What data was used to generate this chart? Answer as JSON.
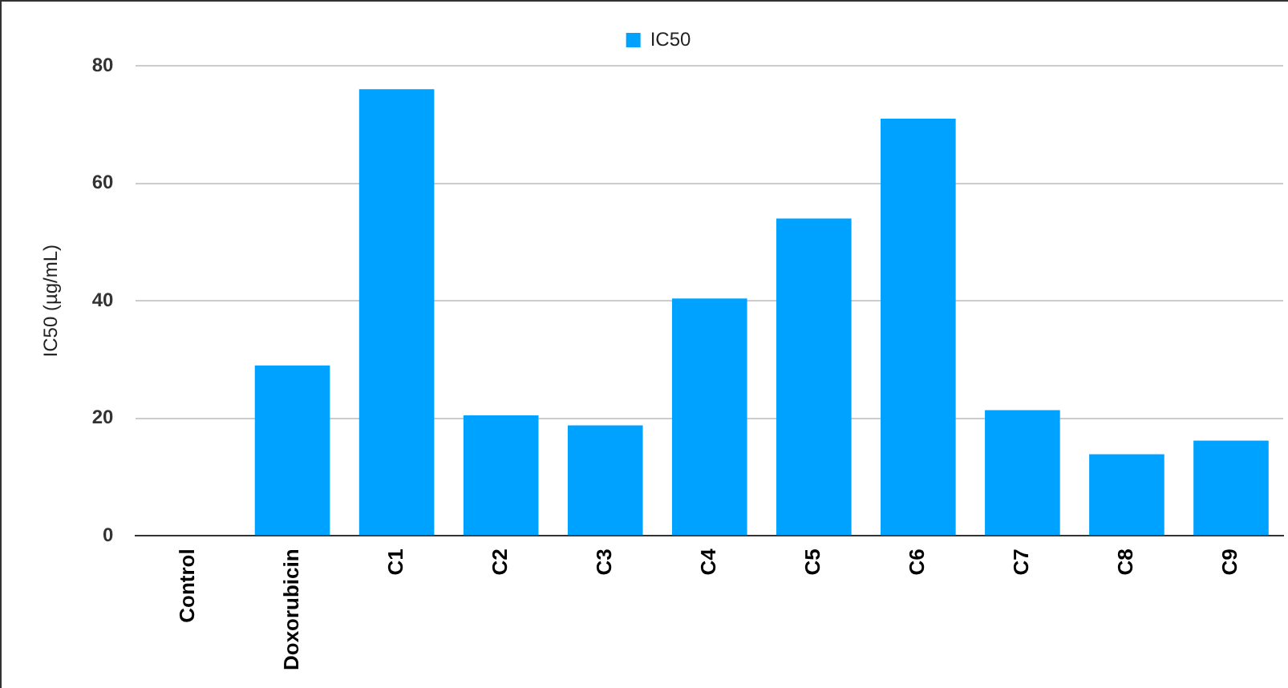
{
  "chart_data": {
    "type": "bar",
    "ylabel": "IC50 (µg/mL)",
    "categories": [
      "Control",
      "Doxorubicin",
      "C1",
      "C2",
      "C3",
      "C4",
      "C5",
      "C6",
      "C7",
      "C8",
      "C9"
    ],
    "series": [
      {
        "name": "IC50",
        "color": "#00a2ff",
        "values": [
          0,
          29,
          76,
          20.5,
          18.8,
          40.4,
          54,
          71,
          21.4,
          13.9,
          16.2
        ]
      }
    ],
    "ylim": [
      0,
      80
    ],
    "yticks": [
      0,
      20,
      40,
      60,
      80
    ],
    "grid": "y",
    "legend": "top"
  }
}
